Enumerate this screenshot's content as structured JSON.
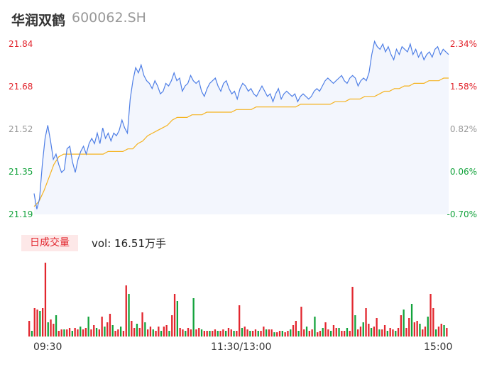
{
  "header": {
    "name": "华润双鹤",
    "code": "600062.SH"
  },
  "badge": "日成交量",
  "volume_text": "vol: 16.51万手",
  "chart_data": [
    {
      "type": "line",
      "title": "华润双鹤",
      "subtitle": "600062.SH",
      "y_ticks_left": [
        "21.84",
        "21.68",
        "21.52",
        "21.35",
        "21.19"
      ],
      "y_ticks_right": [
        "2.34%",
        "1.58%",
        "0.82%",
        "0.06%",
        "-0.70%"
      ],
      "ylim": [
        21.19,
        21.84
      ],
      "x_ticks": [
        "09:30",
        "11:30/13:00",
        "15:00"
      ],
      "grid": false,
      "series": [
        {
          "name": "price",
          "color": "#4f7fe6",
          "values": [
            21.27,
            21.21,
            21.25,
            21.38,
            21.48,
            21.53,
            21.47,
            21.4,
            21.42,
            21.38,
            21.35,
            21.36,
            21.44,
            21.45,
            21.39,
            21.35,
            21.4,
            21.43,
            21.45,
            21.42,
            21.46,
            21.48,
            21.46,
            21.5,
            21.46,
            21.52,
            21.48,
            21.5,
            21.47,
            21.5,
            21.49,
            21.51,
            21.55,
            21.52,
            21.5,
            21.63,
            21.7,
            21.75,
            21.73,
            21.76,
            21.72,
            21.7,
            21.69,
            21.67,
            21.7,
            21.68,
            21.65,
            21.66,
            21.69,
            21.68,
            21.7,
            21.73,
            21.7,
            21.71,
            21.66,
            21.68,
            21.69,
            21.72,
            21.7,
            21.69,
            21.7,
            21.66,
            21.64,
            21.67,
            21.69,
            21.7,
            21.71,
            21.68,
            21.66,
            21.69,
            21.7,
            21.67,
            21.65,
            21.66,
            21.63,
            21.67,
            21.69,
            21.68,
            21.66,
            21.67,
            21.65,
            21.64,
            21.66,
            21.68,
            21.66,
            21.64,
            21.65,
            21.62,
            21.65,
            21.67,
            21.63,
            21.65,
            21.66,
            21.65,
            21.64,
            21.65,
            21.62,
            21.64,
            21.65,
            21.64,
            21.63,
            21.64,
            21.66,
            21.67,
            21.66,
            21.68,
            21.7,
            21.71,
            21.7,
            21.69,
            21.7,
            21.71,
            21.72,
            21.7,
            21.69,
            21.71,
            21.72,
            21.71,
            21.68,
            21.7,
            21.71,
            21.7,
            21.73,
            21.8,
            21.85,
            21.83,
            21.82,
            21.84,
            21.81,
            21.83,
            21.8,
            21.78,
            21.82,
            21.8,
            21.83,
            21.82,
            21.81,
            21.84,
            21.8,
            21.82,
            21.79,
            21.81,
            21.78,
            21.8,
            21.81,
            21.79,
            21.82,
            21.83,
            21.8,
            21.82,
            21.81,
            21.8
          ]
        },
        {
          "name": "avg",
          "color": "#f5b320",
          "values": [
            21.22,
            21.24,
            21.28,
            21.33,
            21.38,
            21.41,
            21.42,
            21.42,
            21.42,
            21.42,
            21.42,
            21.42,
            21.42,
            21.42,
            21.42,
            21.43,
            21.43,
            21.43,
            21.43,
            21.44,
            21.44,
            21.46,
            21.47,
            21.49,
            21.5,
            21.51,
            21.52,
            21.53,
            21.55,
            21.56,
            21.56,
            21.56,
            21.57,
            21.57,
            21.57,
            21.58,
            21.58,
            21.58,
            21.58,
            21.58,
            21.58,
            21.59,
            21.59,
            21.59,
            21.59,
            21.6,
            21.6,
            21.6,
            21.6,
            21.6,
            21.6,
            21.6,
            21.6,
            21.6,
            21.61,
            21.61,
            21.61,
            21.61,
            21.61,
            21.61,
            21.61,
            21.62,
            21.62,
            21.62,
            21.63,
            21.63,
            21.63,
            21.64,
            21.64,
            21.64,
            21.65,
            21.66,
            21.66,
            21.67,
            21.67,
            21.68,
            21.68,
            21.69,
            21.69,
            21.69,
            21.7,
            21.7,
            21.7,
            21.71,
            21.71
          ]
        }
      ]
    },
    {
      "type": "bar",
      "title": "日成交量",
      "x_ticks": [
        "09:30",
        "11:30/13:00",
        "15:00"
      ],
      "series": [
        {
          "name": "volume",
          "values": [
            22,
            8,
            40,
            38,
            36,
            40,
            104,
            20,
            24,
            18,
            30,
            8,
            10,
            10,
            10,
            12,
            8,
            12,
            10,
            14,
            10,
            12,
            28,
            10,
            16,
            12,
            10,
            28,
            14,
            20,
            32,
            16,
            8,
            10,
            14,
            8,
            72,
            60,
            22,
            12,
            18,
            12,
            34,
            20,
            10,
            14,
            10,
            8,
            14,
            8,
            14,
            16,
            8,
            30,
            60,
            50,
            12,
            10,
            8,
            12,
            10,
            54,
            10,
            12,
            10,
            8,
            8,
            8,
            8,
            10,
            8,
            8,
            10,
            8,
            12,
            10,
            8,
            8,
            44,
            12,
            14,
            10,
            8,
            8,
            10,
            8,
            8,
            14,
            10,
            10,
            10,
            6,
            6,
            8,
            8,
            6,
            8,
            10,
            16,
            22,
            8,
            42,
            10,
            14,
            8,
            10,
            28,
            6,
            8,
            12,
            20,
            10,
            8,
            16,
            12,
            12,
            8,
            8,
            12,
            8,
            70,
            30,
            10,
            14,
            20,
            40,
            18,
            12,
            14,
            26,
            10,
            10,
            16,
            8,
            12,
            10,
            8,
            12,
            30,
            38,
            12,
            26,
            46,
            20,
            22,
            18,
            10,
            14,
            28,
            60,
            40,
            10,
            14,
            18,
            16,
            12
          ]
        }
      ],
      "colors": [
        "#e2262e",
        "#13a33c"
      ]
    }
  ]
}
